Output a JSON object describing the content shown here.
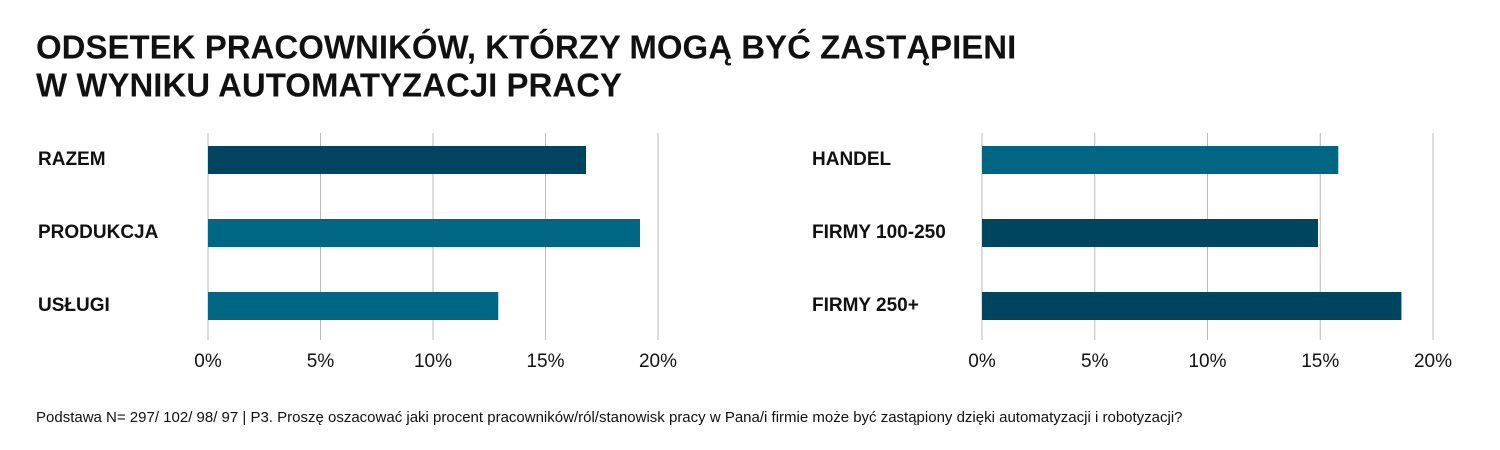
{
  "title_lines": [
    "ODSETEK PRACOWNIKÓW, KTÓRZY MOGĄ BYĆ ZASTĄPIENI",
    "W WYNIKU AUTOMATYZACJI PRACY"
  ],
  "footnote": "Podstawa N= 297/ 102/ 98/ 97 | P3. Proszę oszacować jaki procent pracowników/ról/stanowisk pracy w Pana/i firmie może być zastąpiony dzięki automatyzacji i robotyzacji?",
  "chart_data": [
    {
      "type": "hbar",
      "categories": [
        "RAZEM",
        "PRODUKCJA",
        "USŁUGI"
      ],
      "values": [
        16.8,
        19.2,
        12.9
      ],
      "colors": [
        "#00455f",
        "#006684",
        "#006684"
      ],
      "xlim": [
        0,
        20
      ],
      "xticks": [
        {
          "value": 0,
          "label": "0%"
        },
        {
          "value": 5,
          "label": "5%"
        },
        {
          "value": 10,
          "label": "10%"
        },
        {
          "value": 15,
          "label": "15%"
        },
        {
          "value": 20,
          "label": "20%"
        }
      ],
      "grid": true
    },
    {
      "type": "hbar",
      "categories": [
        "HANDEL",
        "FIRMY 100-250",
        "FIRMY 250+"
      ],
      "values": [
        15.8,
        14.9,
        18.6
      ],
      "colors": [
        "#006684",
        "#00455f",
        "#00455f"
      ],
      "xlim": [
        0,
        20
      ],
      "xticks": [
        {
          "value": 0,
          "label": "0%"
        },
        {
          "value": 5,
          "label": "5%"
        },
        {
          "value": 10,
          "label": "10%"
        },
        {
          "value": 15,
          "label": "15%"
        },
        {
          "value": 20,
          "label": "20%"
        }
      ],
      "grid": true
    }
  ]
}
